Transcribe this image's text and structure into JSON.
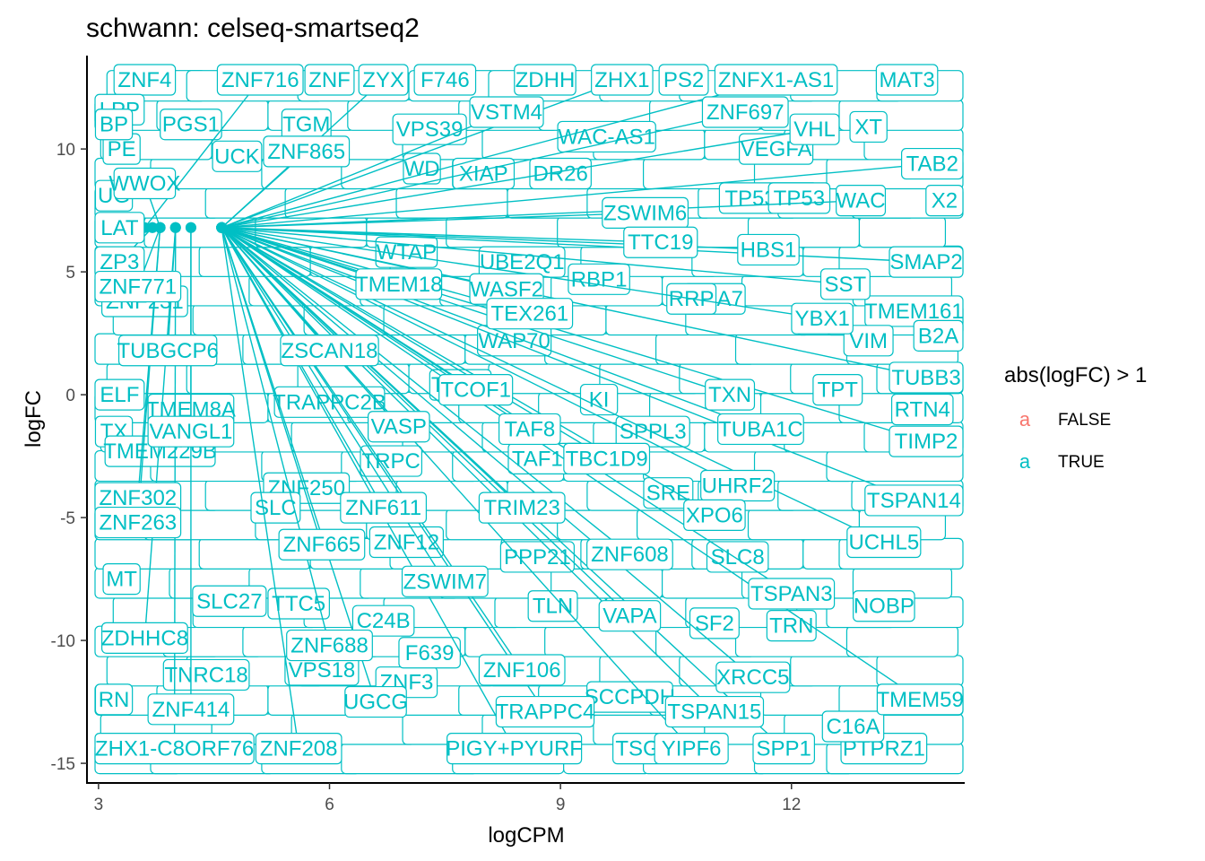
{
  "chart_data": {
    "type": "scatter",
    "title": "schwann: celseq-smartseq2",
    "xlabel": "logCPM",
    "ylabel": "logFC",
    "xlim": [
      2.85,
      14.25
    ],
    "ylim": [
      -15.8,
      13.8
    ],
    "x_ticks": [
      3,
      6,
      9,
      12
    ],
    "y_ticks": [
      -15,
      -10,
      -5,
      0,
      5,
      10
    ],
    "grid": false,
    "legend": {
      "title": "abs(logFC) > 1",
      "placement": "right",
      "items": [
        {
          "key": "a",
          "label": "FALSE",
          "color": "#F8766D"
        },
        {
          "key": "a",
          "label": "TRUE",
          "color": "#00BFC4"
        }
      ]
    },
    "point_color": "#00BFC4",
    "points": [
      {
        "gene": "ZNF716",
        "x": 3.6,
        "y": 6.8,
        "lx": 5.1,
        "ly": 13.2
      },
      {
        "gene": "ZYX",
        "x": 4.6,
        "y": 6.8,
        "lx": 6.7,
        "ly": 13.2
      },
      {
        "gene": "ZHX1",
        "x": 4.6,
        "y": 6.8,
        "lx": 9.8,
        "ly": 13.2
      },
      {
        "gene": "ZNFX1-AS1",
        "x": 4.6,
        "y": 6.8,
        "lx": 11.8,
        "ly": 13.2
      },
      {
        "gene": "VSTM4",
        "x": 4.6,
        "y": 6.8,
        "lx": 8.3,
        "ly": 11.5
      },
      {
        "gene": "ZNF697",
        "x": 4.6,
        "y": 6.8,
        "lx": 11.4,
        "ly": 11.5
      },
      {
        "gene": "ZNF865",
        "x": 4.6,
        "y": 6.8,
        "lx": 5.7,
        "ly": 9.9
      },
      {
        "gene": "WWOX",
        "x": 3.8,
        "y": 6.8,
        "lx": 3.6,
        "ly": 8.6
      },
      {
        "gene": "VHL",
        "x": 4.6,
        "y": 6.8,
        "lx": 12.3,
        "ly": 10.8
      },
      {
        "gene": "TAB2",
        "x": 4.6,
        "y": 6.8,
        "lx": 14.3,
        "ly": 9.4
      },
      {
        "gene": "ZSWIM6",
        "x": 4.6,
        "y": 6.8,
        "lx": 10.1,
        "ly": 7.4
      },
      {
        "gene": "WAC",
        "x": 4.6,
        "y": 6.8,
        "lx": 12.9,
        "ly": 7.9
      },
      {
        "gene": "LAT",
        "x": 3.7,
        "y": 6.8,
        "lx": 3.2,
        "ly": 6.8
      },
      {
        "gene": "TTC19",
        "x": 4.6,
        "y": 6.8,
        "lx": 10.3,
        "ly": 6.2
      },
      {
        "gene": "HBS1",
        "x": 4.6,
        "y": 6.8,
        "lx": 11.7,
        "ly": 5.9
      },
      {
        "gene": "ZP3",
        "x": 3.7,
        "y": 6.8,
        "lx": 3.2,
        "ly": 5.4
      },
      {
        "gene": "SMAP2",
        "x": 4.6,
        "y": 6.8,
        "lx": 14.2,
        "ly": 5.4
      },
      {
        "gene": "ZNF771",
        "x": 3.8,
        "y": 6.8,
        "lx": 3.4,
        "ly": 4.4
      },
      {
        "gene": "TMEM18",
        "x": 4.6,
        "y": 6.8,
        "lx": 6.9,
        "ly": 4.5
      },
      {
        "gene": "WASF2",
        "x": 4.6,
        "y": 6.8,
        "lx": 8.3,
        "ly": 4.3
      },
      {
        "gene": "SST",
        "x": 4.6,
        "y": 6.8,
        "lx": 12.7,
        "ly": 4.5
      },
      {
        "gene": "TEX261",
        "x": 4.6,
        "y": 6.8,
        "lx": 8.6,
        "ly": 3.3
      },
      {
        "gene": "YBX1",
        "x": 4.6,
        "y": 6.8,
        "lx": 12.4,
        "ly": 3.1
      },
      {
        "gene": "TUBGCP6",
        "x": 4.0,
        "y": 6.8,
        "lx": 3.9,
        "ly": 1.8
      },
      {
        "gene": "ZSCAN18",
        "x": 4.6,
        "y": 6.8,
        "lx": 6.0,
        "ly": 1.8
      },
      {
        "gene": "TUBB3",
        "x": 4.6,
        "y": 6.8,
        "lx": 14.3,
        "ly": 0.7
      },
      {
        "gene": "TCOF1",
        "x": 4.6,
        "y": 6.8,
        "lx": 7.9,
        "ly": 0.2
      },
      {
        "gene": "TXN",
        "x": 4.6,
        "y": 6.8,
        "lx": 11.2,
        "ly": 0.0
      },
      {
        "gene": "VANGL1",
        "x": 4.2,
        "y": 6.8,
        "lx": 4.2,
        "ly": -1.5
      },
      {
        "gene": "VASP",
        "x": 4.6,
        "y": 6.8,
        "lx": 6.9,
        "ly": -1.3
      },
      {
        "gene": "TAF8",
        "x": 4.6,
        "y": 6.8,
        "lx": 8.6,
        "ly": -1.4
      },
      {
        "gene": "TUBA1C",
        "x": 4.6,
        "y": 6.8,
        "lx": 11.6,
        "ly": -1.4
      },
      {
        "gene": "TIMP2",
        "x": 4.6,
        "y": 6.8,
        "lx": 14.3,
        "ly": -1.9
      },
      {
        "gene": "TBC1D9",
        "x": 4.6,
        "y": 6.8,
        "lx": 9.6,
        "ly": -2.6
      },
      {
        "gene": "UHRF2",
        "x": 4.6,
        "y": 6.8,
        "lx": 11.3,
        "ly": -3.7
      },
      {
        "gene": "ZNF302",
        "x": 3.8,
        "y": 6.8,
        "lx": 3.4,
        "ly": -4.2
      },
      {
        "gene": "ZNF611",
        "x": 4.6,
        "y": 6.8,
        "lx": 6.7,
        "ly": -4.6
      },
      {
        "gene": "TRIM23",
        "x": 4.6,
        "y": 6.8,
        "lx": 8.5,
        "ly": -4.6
      },
      {
        "gene": "TSPAN14",
        "x": 4.6,
        "y": 6.8,
        "lx": 13.9,
        "ly": -4.3
      },
      {
        "gene": "XPO6",
        "x": 4.6,
        "y": 6.8,
        "lx": 11.0,
        "ly": -4.9
      },
      {
        "gene": "ZNF263",
        "x": 3.8,
        "y": 6.8,
        "lx": 3.4,
        "ly": -5.2
      },
      {
        "gene": "ZNF665",
        "x": 4.6,
        "y": 6.8,
        "lx": 5.9,
        "ly": -6.1
      },
      {
        "gene": "UCHL5",
        "x": 4.6,
        "y": 6.8,
        "lx": 13.2,
        "ly": -6.0
      },
      {
        "gene": "ZNF608",
        "x": 4.6,
        "y": 6.8,
        "lx": 9.9,
        "ly": -6.5
      },
      {
        "gene": "ZSWIM7",
        "x": 4.6,
        "y": 6.8,
        "lx": 7.5,
        "ly": -7.6
      },
      {
        "gene": "TSPAN3",
        "x": 4.6,
        "y": 6.8,
        "lx": 12.0,
        "ly": -8.1
      },
      {
        "gene": "VAPA",
        "x": 4.6,
        "y": 6.8,
        "lx": 9.9,
        "ly": -9.0
      },
      {
        "gene": "ZDHHC8",
        "x": 4.0,
        "y": 6.8,
        "lx": 3.6,
        "ly": -9.9
      },
      {
        "gene": "ZNF688",
        "x": 4.6,
        "y": 6.8,
        "lx": 6.0,
        "ly": -10.2
      },
      {
        "gene": "ZNF106",
        "x": 4.6,
        "y": 6.8,
        "lx": 8.5,
        "ly": -11.2
      },
      {
        "gene": "XRCC5",
        "x": 4.6,
        "y": 6.8,
        "lx": 11.5,
        "ly": -11.5
      },
      {
        "gene": "ZNF414",
        "x": 4.2,
        "y": 6.8,
        "lx": 4.2,
        "ly": -12.8
      },
      {
        "gene": "UGCG",
        "x": 4.6,
        "y": 6.8,
        "lx": 6.6,
        "ly": -12.5
      },
      {
        "gene": "TRAPPC4",
        "x": 4.6,
        "y": 6.8,
        "lx": 8.8,
        "ly": -12.9
      },
      {
        "gene": "TSPAN15",
        "x": 4.6,
        "y": 6.8,
        "lx": 11.0,
        "ly": -12.9
      },
      {
        "gene": "TMEM59",
        "x": 4.6,
        "y": 6.8,
        "lx": 13.7,
        "ly": -12.4
      },
      {
        "gene": "ZHX1-C8ORF76",
        "x": 4.0,
        "y": 6.8,
        "lx": 3.7,
        "ly": -14.4
      },
      {
        "gene": "ZNF208",
        "x": 4.6,
        "y": 6.8,
        "lx": 5.6,
        "ly": -14.4
      },
      {
        "gene": "PIGY+PYURF",
        "x": 4.6,
        "y": 6.8,
        "lx": 8.4,
        "ly": -14.4
      },
      {
        "gene": "YIPF6",
        "x": 4.6,
        "y": 6.8,
        "lx": 10.7,
        "ly": -14.4
      },
      {
        "gene": "SPP1",
        "x": 4.6,
        "y": 6.8,
        "lx": 11.9,
        "ly": -14.4
      }
    ],
    "background_labels": [
      {
        "text": "ZNF4",
        "x": 3.6,
        "y": 13.2
      },
      {
        "text": "ZNF",
        "x": 6.0,
        "y": 13.2
      },
      {
        "text": "F746",
        "x": 7.5,
        "y": 13.2
      },
      {
        "text": "ZDHH",
        "x": 8.8,
        "y": 13.2
      },
      {
        "text": "PS2",
        "x": 10.6,
        "y": 13.2
      },
      {
        "text": "MAT3",
        "x": 13.5,
        "y": 13.2
      },
      {
        "text": "PGS1",
        "x": 4.2,
        "y": 11.0
      },
      {
        "text": "VPS39",
        "x": 7.3,
        "y": 10.8
      },
      {
        "text": "WAC-AS1",
        "x": 9.6,
        "y": 10.5
      },
      {
        "text": "XT",
        "x": 13.0,
        "y": 10.9
      },
      {
        "text": "UCK",
        "x": 4.8,
        "y": 9.7
      },
      {
        "text": "VEGFA",
        "x": 11.8,
        "y": 10.0
      },
      {
        "text": "PE",
        "x": 3.3,
        "y": 10.0
      },
      {
        "text": "XIAP",
        "x": 8.0,
        "y": 9.0
      },
      {
        "text": "DR26",
        "x": 9.0,
        "y": 9.0
      },
      {
        "text": "WD",
        "x": 7.2,
        "y": 9.2
      },
      {
        "text": "TP53INP",
        "x": 11.7,
        "y": 8.0
      },
      {
        "text": "X2",
        "x": 14.3,
        "y": 7.9
      },
      {
        "text": "UBE2Q1",
        "x": 8.5,
        "y": 5.4
      },
      {
        "text": "RBP1",
        "x": 9.5,
        "y": 4.7
      },
      {
        "text": "TMA7",
        "x": 11.0,
        "y": 3.9
      },
      {
        "text": "TMEM161",
        "x": 13.9,
        "y": 3.4
      },
      {
        "text": "WAP70",
        "x": 8.4,
        "y": 2.2
      },
      {
        "text": "VIM",
        "x": 13.0,
        "y": 2.2
      },
      {
        "text": "B2A",
        "x": 14.0,
        "y": 2.4
      },
      {
        "text": "ELF",
        "x": 3.2,
        "y": 0.0
      },
      {
        "text": "TPT",
        "x": 12.6,
        "y": 0.2
      },
      {
        "text": "RTN4",
        "x": 13.7,
        "y": -0.6
      },
      {
        "text": "TAF1C",
        "x": 8.8,
        "y": -2.6
      },
      {
        "text": "TX",
        "x": 3.2,
        "y": -1.5
      },
      {
        "text": "ZNF250",
        "x": 5.7,
        "y": -3.8
      },
      {
        "text": "ZNF12",
        "x": 7.0,
        "y": -6.0
      },
      {
        "text": "MT",
        "x": 3.3,
        "y": -7.5
      },
      {
        "text": "TTC5",
        "x": 5.6,
        "y": -8.5
      },
      {
        "text": "NOBP",
        "x": 13.2,
        "y": -8.6
      },
      {
        "text": "SF2",
        "x": 11.0,
        "y": -9.3
      },
      {
        "text": "TRN",
        "x": 12.0,
        "y": -9.4
      },
      {
        "text": "VPS18",
        "x": 5.9,
        "y": -11.2
      },
      {
        "text": "TNRC18",
        "x": 4.4,
        "y": -11.4
      },
      {
        "text": "SCCPDH",
        "x": 9.9,
        "y": -12.3
      },
      {
        "text": "RN",
        "x": 3.2,
        "y": -12.4
      },
      {
        "text": "TSG",
        "x": 10.0,
        "y": -14.4
      },
      {
        "text": "PTPRZ1",
        "x": 13.2,
        "y": -14.4
      },
      {
        "text": "C16A",
        "x": 12.8,
        "y": -13.5
      },
      {
        "text": "ZNF3",
        "x": 7.0,
        "y": -11.7
      },
      {
        "text": "F639",
        "x": 7.3,
        "y": -10.5
      },
      {
        "text": "C24B",
        "x": 6.7,
        "y": -9.2
      },
      {
        "text": "SLC27",
        "x": 4.7,
        "y": -8.4
      },
      {
        "text": "TLN",
        "x": 8.9,
        "y": -8.6
      },
      {
        "text": "SRE",
        "x": 10.4,
        "y": -4.0
      },
      {
        "text": "SPPL3",
        "x": 10.2,
        "y": -1.5
      },
      {
        "text": "KI",
        "x": 9.5,
        "y": -0.2
      },
      {
        "text": "TCOF",
        "x": 7.7,
        "y": 0.4
      },
      {
        "text": "TMEM229B",
        "x": 3.8,
        "y": -2.3
      },
      {
        "text": "TRAPPC2B",
        "x": 6.0,
        "y": -0.3
      },
      {
        "text": "TMEM8A",
        "x": 4.2,
        "y": -0.6
      },
      {
        "text": "LPP",
        "x": 3.2,
        "y": 11.6
      },
      {
        "text": "BP",
        "x": 3.2,
        "y": 11.0
      },
      {
        "text": "UG",
        "x": 3.2,
        "y": 8.1
      },
      {
        "text": "WTAP",
        "x": 7.0,
        "y": 5.8
      },
      {
        "text": "RRP",
        "x": 10.7,
        "y": 3.9
      },
      {
        "text": "TP53",
        "x": 12.1,
        "y": 8.0
      },
      {
        "text": "SLC8",
        "x": 11.3,
        "y": -6.6
      },
      {
        "text": "PPP21",
        "x": 8.7,
        "y": -6.6
      },
      {
        "text": "SLC",
        "x": 5.3,
        "y": -4.6
      },
      {
        "text": "TRPC",
        "x": 6.8,
        "y": -2.7
      },
      {
        "text": "ZNF231",
        "x": 3.6,
        "y": 3.8
      },
      {
        "text": "TGM",
        "x": 5.7,
        "y": 11.0
      }
    ]
  }
}
